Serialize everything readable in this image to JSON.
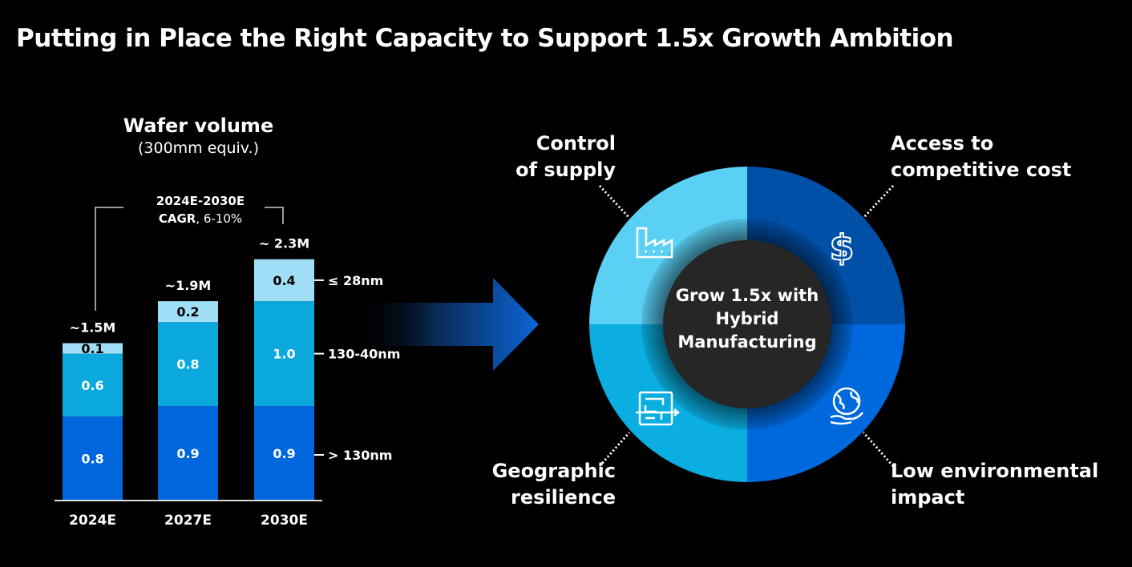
{
  "title": "Putting in Place the Right Capacity to Support 1.5x Growth Ambition",
  "chart_data": {
    "type": "bar",
    "stacked": true,
    "title": "Wafer volume",
    "subtitle": "(300mm equiv.)",
    "annotation": {
      "line1": "2024E-2030E",
      "line2_bold": "CAGR",
      "line2_rest": ", 6-10%"
    },
    "categories": [
      "2024E",
      "2027E",
      "2030E"
    ],
    "totals": [
      "~1.5M",
      "~1.9M",
      "~ 2.3M"
    ],
    "series": [
      {
        "name": "> 130nm",
        "values": [
          0.8,
          0.9,
          0.9
        ],
        "color": "#0066dd",
        "text_color": "#ffffff"
      },
      {
        "name": "130-40nm",
        "values": [
          0.6,
          0.8,
          1.0
        ],
        "color": "#0aa8dc",
        "text_color": "#ffffff"
      },
      {
        "name": "≤ 28nm",
        "values": [
          0.1,
          0.2,
          0.4
        ],
        "color": "#a0def5",
        "text_color": "#000000"
      }
    ],
    "value_labels": [
      [
        "0.8",
        "0.9",
        "0.9"
      ],
      [
        "0.6",
        "0.8",
        "1.0"
      ],
      [
        "0.1",
        "0.2",
        "0.4"
      ]
    ],
    "ylim": [
      0,
      2.4
    ]
  },
  "wheel": {
    "center": {
      "line1": "Grow 1.5x with",
      "line2": "Hybrid",
      "line3": "Manufacturing"
    },
    "quadrants": [
      {
        "line1": "Control",
        "line2": "of supply",
        "icon": "factory-icon",
        "color": "#5ad0f5"
      },
      {
        "line1": "Access to",
        "line2": "competitive cost",
        "icon": "dollar-icon",
        "color": "#0050a8"
      },
      {
        "line1": "Geographic",
        "line2": "resilience",
        "icon": "maze-icon",
        "color": "#0aaee0"
      },
      {
        "line1": "Low environmental",
        "line2": "impact",
        "icon": "globe-hand-icon",
        "color": "#0068dd"
      }
    ]
  }
}
